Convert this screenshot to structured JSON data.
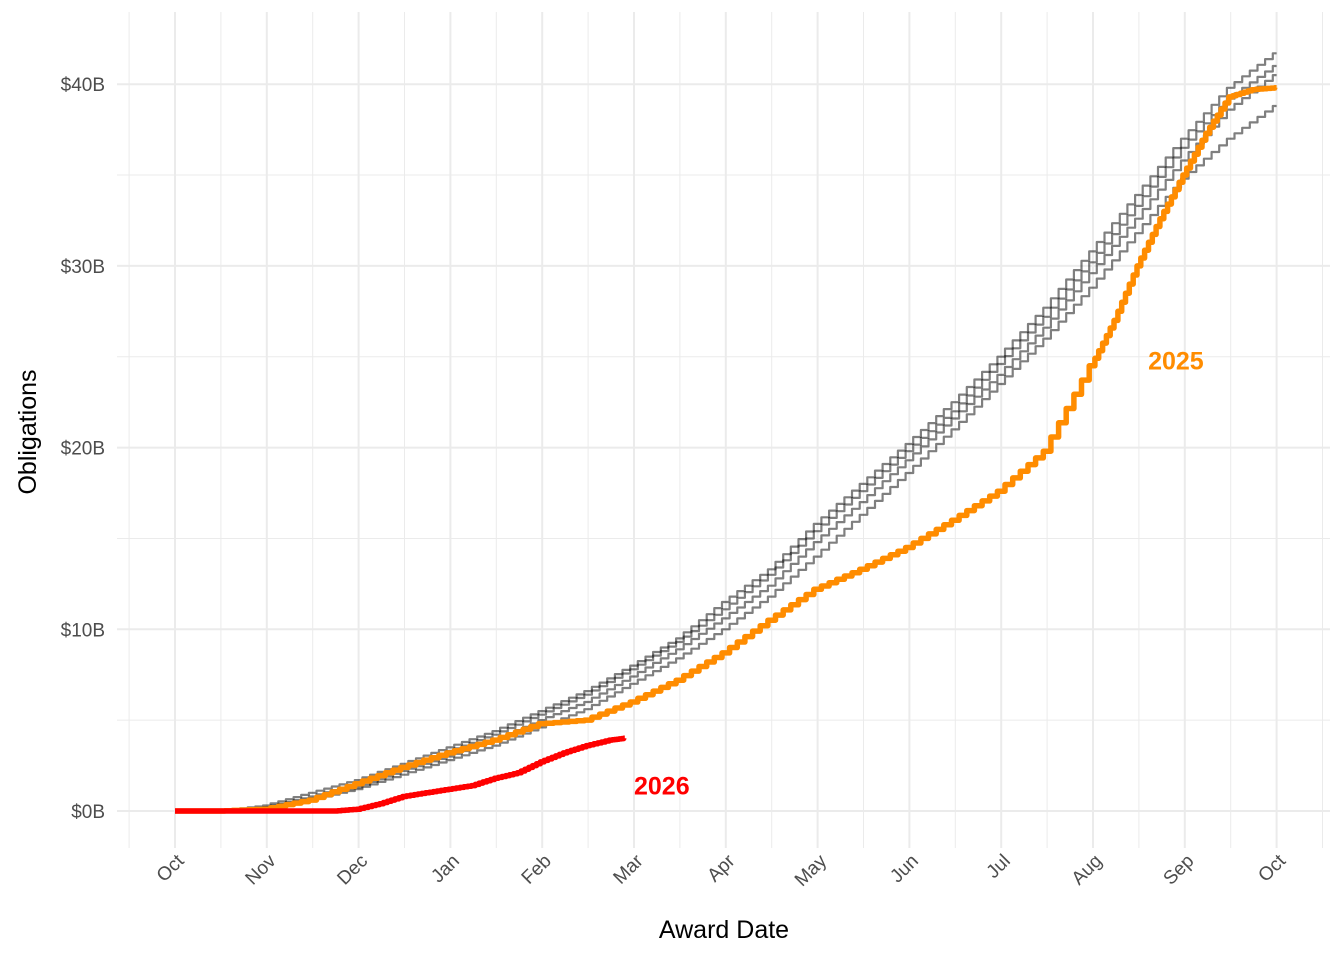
{
  "chart_data": {
    "type": "line",
    "title": "",
    "xlabel": "Award Date",
    "ylabel": "Obligations",
    "grid": true,
    "legend": "none",
    "x_ticks": [
      "Oct",
      "Nov",
      "Dec",
      "Jan",
      "Feb",
      "Mar",
      "Apr",
      "May",
      "Jun",
      "Jul",
      "Aug",
      "Sep",
      "Oct"
    ],
    "y_ticks": [
      {
        "value": 0,
        "label": "$0B"
      },
      {
        "value": 10,
        "label": "$10B"
      },
      {
        "value": 20,
        "label": "$20B"
      },
      {
        "value": 30,
        "label": "$30B"
      },
      {
        "value": 40,
        "label": "$40B"
      }
    ],
    "x_unit": "months since Oct 1 (fiscal year)",
    "y_unit": "billions of dollars",
    "xlim": [
      -0.5,
      12.5
    ],
    "ylim": [
      -2,
      43.5
    ],
    "series": [
      {
        "name": "",
        "color": "#000000",
        "opacity": 0.5,
        "x": [
          0,
          0.5,
          1,
          1.5,
          2,
          2.5,
          3,
          3.5,
          4,
          4.5,
          5,
          5.5,
          6,
          6.5,
          7,
          7.5,
          8,
          8.5,
          9,
          9.5,
          10,
          10.5,
          11,
          11.5,
          12
        ],
        "y": [
          0,
          0,
          0.3,
          1.0,
          1.7,
          2.6,
          3.5,
          4.4,
          5.5,
          6.6,
          8.0,
          9.5,
          11.5,
          13.3,
          15.8,
          18.0,
          20.2,
          22.5,
          25.0,
          27.7,
          30.8,
          33.9,
          37.0,
          39.8,
          41.7
        ]
      },
      {
        "name": "",
        "color": "#000000",
        "opacity": 0.5,
        "x": [
          0,
          0.5,
          1,
          1.5,
          2,
          2.5,
          3,
          3.5,
          4,
          4.5,
          5,
          5.5,
          6,
          6.5,
          7,
          7.5,
          8,
          8.5,
          9,
          9.5,
          10,
          10.5,
          11,
          11.5,
          12
        ],
        "y": [
          0,
          0,
          0.2,
          0.8,
          1.5,
          2.4,
          3.3,
          4.2,
          5.3,
          6.4,
          7.8,
          9.3,
          11.1,
          13.0,
          15.4,
          17.6,
          19.8,
          22.0,
          24.6,
          27.2,
          30.2,
          33.3,
          36.5,
          39.2,
          41.0
        ]
      },
      {
        "name": "",
        "color": "#000000",
        "opacity": 0.5,
        "x": [
          0,
          0.5,
          1,
          1.5,
          2,
          2.5,
          3,
          3.5,
          4,
          4.5,
          5,
          5.5,
          6,
          6.5,
          7,
          7.5,
          8,
          8.5,
          9,
          9.5,
          10,
          10.5,
          11,
          11.5,
          12
        ],
        "y": [
          0,
          0,
          0.2,
          0.7,
          1.3,
          2.2,
          3.0,
          3.9,
          5.0,
          6.0,
          7.4,
          8.9,
          10.6,
          12.4,
          14.8,
          17.0,
          19.3,
          21.6,
          24.0,
          26.6,
          29.6,
          32.6,
          35.8,
          38.6,
          40.5
        ]
      },
      {
        "name": "",
        "color": "#000000",
        "opacity": 0.5,
        "x": [
          0,
          0.5,
          1,
          1.5,
          2,
          2.5,
          3,
          3.5,
          4,
          4.5,
          5,
          5.5,
          6,
          6.5,
          7,
          7.5,
          8,
          8.5,
          9,
          9.5,
          10,
          10.5,
          11,
          11.5,
          12
        ],
        "y": [
          0,
          0,
          0.1,
          0.6,
          1.2,
          2.0,
          2.8,
          3.6,
          4.6,
          5.6,
          7.0,
          8.4,
          10.0,
          11.8,
          14.0,
          16.3,
          18.6,
          21.0,
          23.5,
          26.0,
          28.8,
          31.8,
          34.8,
          37.0,
          38.8
        ]
      },
      {
        "name": "2025",
        "color": "#FF8C00",
        "opacity": 1,
        "x": [
          0,
          0.5,
          1,
          1.5,
          2,
          2.5,
          3,
          3.5,
          4,
          4.5,
          5,
          5.5,
          6,
          6.5,
          7,
          7.5,
          8,
          8.5,
          9,
          9.5,
          10,
          10.25,
          10.5,
          10.75,
          11,
          11.25,
          11.5,
          11.75,
          12
        ],
        "y": [
          0,
          0,
          0.1,
          0.6,
          1.5,
          2.4,
          3.2,
          3.9,
          4.8,
          5.0,
          6.0,
          7.2,
          8.7,
          10.5,
          12.2,
          13.3,
          14.5,
          16.0,
          17.6,
          19.8,
          24.5,
          27.0,
          30.0,
          32.6,
          35.0,
          37.3,
          39.3,
          39.7,
          39.8
        ]
      },
      {
        "name": "2026",
        "color": "#FF0000",
        "opacity": 1,
        "x": [
          0,
          0.5,
          1,
          1.5,
          1.75,
          2,
          2.25,
          2.5,
          2.75,
          3,
          3.25,
          3.5,
          3.75,
          4,
          4.25,
          4.5,
          4.75,
          4.9
        ],
        "y": [
          0,
          0,
          0,
          0,
          0,
          0.1,
          0.4,
          0.8,
          1.0,
          1.2,
          1.4,
          1.8,
          2.1,
          2.7,
          3.2,
          3.6,
          3.9,
          4.0
        ]
      }
    ],
    "annotations": [
      {
        "text": "2025",
        "color": "#FF8C00",
        "x": 10.6,
        "y": 24.8
      },
      {
        "text": "2026",
        "color": "#FF0000",
        "x": 5.0,
        "y": 1.4
      }
    ]
  }
}
